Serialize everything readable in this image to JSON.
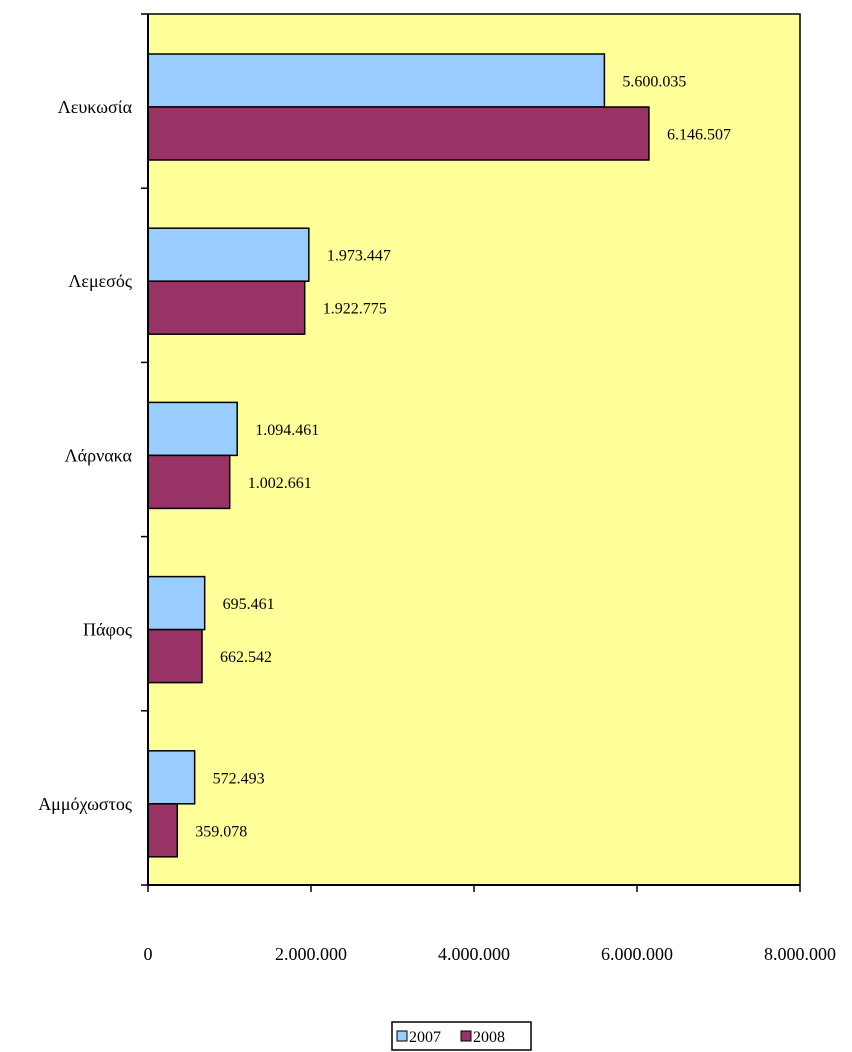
{
  "chart_data": {
    "type": "bar",
    "orientation": "horizontal",
    "title": "",
    "xlabel": "",
    "ylabel": "",
    "categories": [
      "Λευκωσία",
      "Λεμεσός",
      "Λάρνακα",
      "Πάφος",
      "Αμμόχωστος"
    ],
    "series": [
      {
        "name": "2007",
        "color": "#99ccff",
        "values": [
          5600035,
          1973447,
          1094461,
          695461,
          572493
        ],
        "labels": [
          "5.600.035",
          "1.973.447",
          "1.094.461",
          "695.461",
          "572.493"
        ]
      },
      {
        "name": "2008",
        "color": "#993366",
        "values": [
          6146507,
          1922775,
          1002661,
          662542,
          359078
        ],
        "labels": [
          "6.146.507",
          "1.922.775",
          "1.002.661",
          "662.542",
          "359.078"
        ]
      }
    ],
    "xlim": [
      0,
      8000000
    ],
    "xticks": [
      0,
      2000000,
      4000000,
      6000000,
      8000000
    ],
    "xtick_labels": [
      "0",
      "2.000.000",
      "4.000.000",
      "6.000.000",
      "8.000.000"
    ],
    "plot_background": "#ffff99",
    "grid": false,
    "legend_position": "bottom"
  }
}
